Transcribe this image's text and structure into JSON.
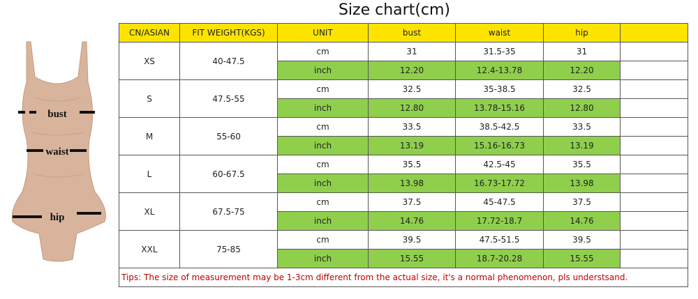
{
  "title": "Size chart(cm)",
  "figure": {
    "labels": [
      "bust",
      "waist",
      "hip"
    ]
  },
  "table": {
    "headers": [
      "CN/ASIAN",
      "FIT WEIGHT(KGS)",
      "UNIT",
      "bust",
      "waist",
      "hip"
    ],
    "units": [
      "cm",
      "inch"
    ],
    "rows": [
      {
        "size": "XS",
        "weight": "40-47.5",
        "cm": [
          "31",
          "31.5-35",
          "31"
        ],
        "inch": [
          "12.20",
          "12.4-13.78",
          "12.20"
        ]
      },
      {
        "size": "S",
        "weight": "47.5-55",
        "cm": [
          "32.5",
          "35-38.5",
          "32.5"
        ],
        "inch": [
          "12.80",
          "13.78-15.16",
          "12.80"
        ]
      },
      {
        "size": "M",
        "weight": "55-60",
        "cm": [
          "33.5",
          "38.5-42.5",
          "33.5"
        ],
        "inch": [
          "13.19",
          "15.16-16.73",
          "13.19"
        ]
      },
      {
        "size": "L",
        "weight": "60-67.5",
        "cm": [
          "35.5",
          "42.5-45",
          "35.5"
        ],
        "inch": [
          "13.98",
          "16.73-17.72",
          "13.98"
        ]
      },
      {
        "size": "XL",
        "weight": "67.5-75",
        "cm": [
          "37.5",
          "45-47.5",
          "37.5"
        ],
        "inch": [
          "14.76",
          "17.72-18.7",
          "14.76"
        ]
      },
      {
        "size": "XXL",
        "weight": "75-85",
        "cm": [
          "39.5",
          "47.5-51.5",
          "39.5"
        ],
        "inch": [
          "15.55",
          "18.7-20.28",
          "15.55"
        ]
      }
    ],
    "tip": "Tips: The size of measurement may be 1-3cm different from the actual size, it's a normal phenomenon, pls understsand."
  }
}
